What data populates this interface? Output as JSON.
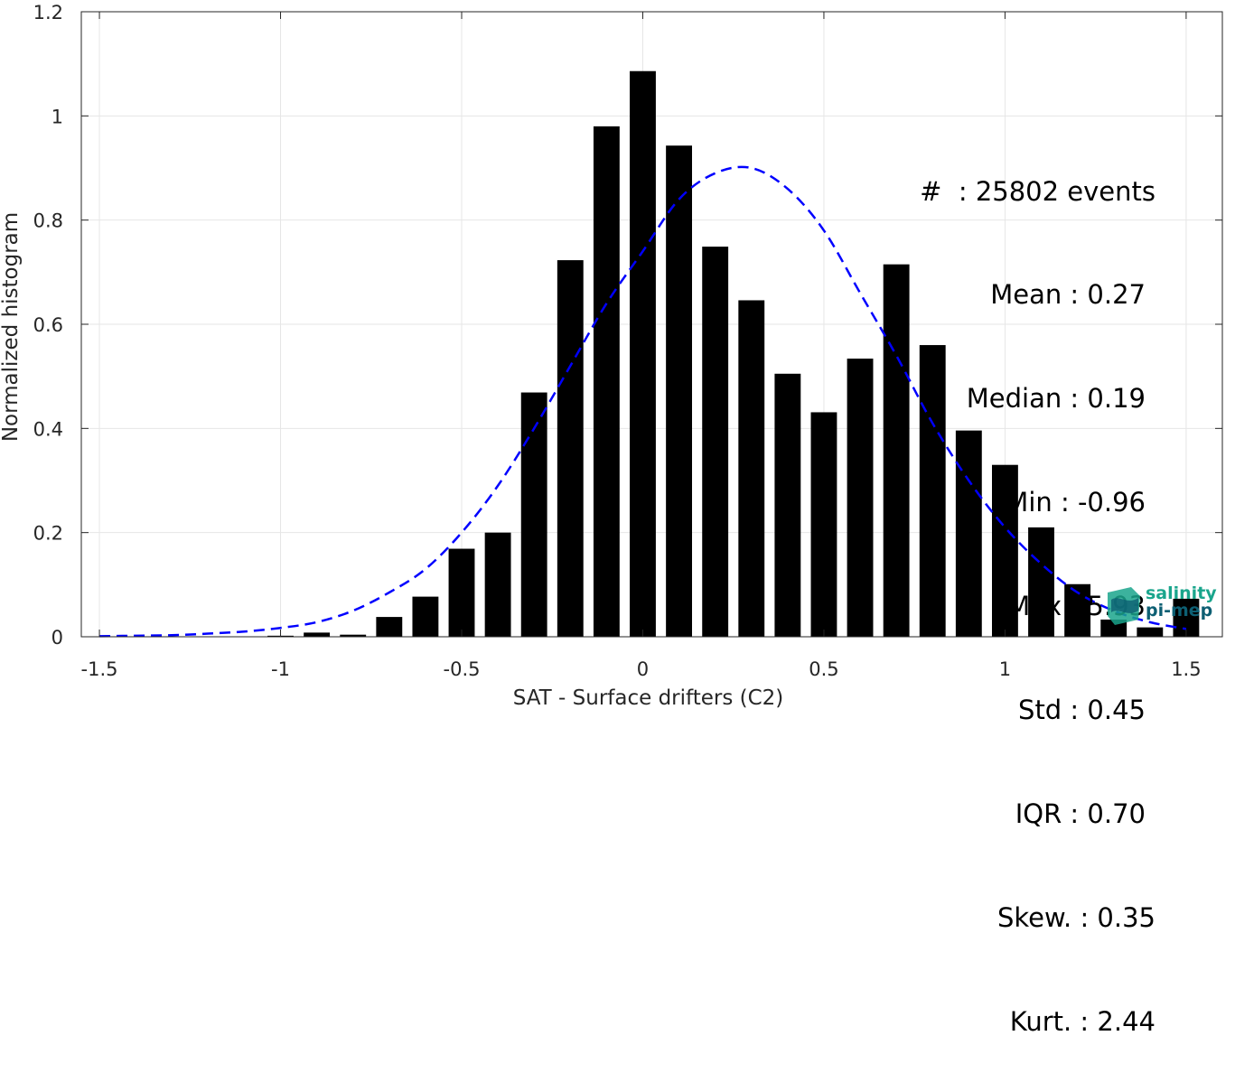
{
  "chart_data": {
    "type": "bar",
    "xlabel": "SAT - Surface drifters (C2)",
    "ylabel": "Normalized histogram",
    "xlim": [
      -1.55,
      1.6
    ],
    "ylim": [
      0,
      1.2
    ],
    "xticks": [
      "-1.5",
      "-1",
      "-0.5",
      "0",
      "0.5",
      "1",
      "1.5"
    ],
    "xtick_values": [
      -1.5,
      -1,
      -0.5,
      0,
      0.5,
      1,
      1.5
    ],
    "yticks": [
      "0",
      "0.2",
      "0.4",
      "0.6",
      "0.8",
      "1",
      "1.2"
    ],
    "ytick_values": [
      0,
      0.2,
      0.4,
      0.6,
      0.8,
      1,
      1.2
    ],
    "grid": true,
    "bar_color": "#000000",
    "bars": {
      "x": [
        -1.5,
        -1.4,
        -1.3,
        -1.2,
        -1.1,
        -1.0,
        -0.9,
        -0.8,
        -0.7,
        -0.6,
        -0.5,
        -0.4,
        -0.3,
        -0.2,
        -0.1,
        0.0,
        0.1,
        0.2,
        0.3,
        0.4,
        0.5,
        0.6,
        0.7,
        0.8,
        0.9,
        1.0,
        1.1,
        1.2,
        1.3,
        1.4,
        1.5
      ],
      "values": [
        0,
        0,
        0,
        0,
        0,
        0.002,
        0.008,
        0.004,
        0.038,
        0.077,
        0.169,
        0.2,
        0.469,
        0.723,
        0.98,
        1.086,
        0.943,
        0.749,
        0.646,
        0.505,
        0.431,
        0.534,
        0.715,
        0.56,
        0.396,
        0.33,
        0.21,
        0.101,
        0.033,
        0.018,
        0.073
      ]
    },
    "fit_curve": {
      "style": "dashed",
      "color": "#0000ff",
      "x": [
        -1.5,
        -1.4,
        -1.3,
        -1.2,
        -1.1,
        -1.0,
        -0.9,
        -0.8,
        -0.7,
        -0.6,
        -0.5,
        -0.4,
        -0.3,
        -0.2,
        -0.1,
        0.0,
        0.1,
        0.2,
        0.3,
        0.4,
        0.5,
        0.6,
        0.7,
        0.8,
        0.9,
        1.0,
        1.1,
        1.2,
        1.3,
        1.4,
        1.5
      ],
      "y": [
        0.001,
        0.002,
        0.003,
        0.006,
        0.01,
        0.017,
        0.028,
        0.05,
        0.085,
        0.13,
        0.2,
        0.29,
        0.4,
        0.52,
        0.64,
        0.74,
        0.84,
        0.89,
        0.9,
        0.86,
        0.78,
        0.66,
        0.54,
        0.41,
        0.3,
        0.21,
        0.14,
        0.085,
        0.05,
        0.028,
        0.015
      ]
    }
  },
  "stats": [
    "#  : 25802 events",
    "Mean : 0.27",
    "Median : 0.19",
    "Min : -0.96",
    "Max : 5.93",
    "Std : 0.45",
    "IQR : 0.70",
    "Skew. : 0.35",
    "Kurt. : 2.44"
  ],
  "logo": {
    "line1": "salinity",
    "line2": "pi-mep",
    "color1": "#1aa58c",
    "color2": "#0d5f73"
  }
}
